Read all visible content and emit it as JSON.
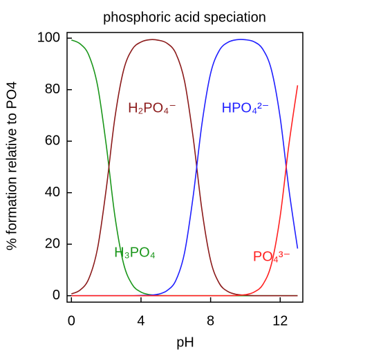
{
  "chart_data": {
    "type": "line",
    "title": "phosphoric acid speciation",
    "xlabel": "pH",
    "ylabel": "% formation relative to PO4",
    "x": [
      0,
      0.5,
      1,
      1.5,
      2,
      2.5,
      3,
      3.5,
      4,
      4.5,
      5,
      5.5,
      6,
      6.5,
      7,
      7.5,
      8,
      8.5,
      9,
      9.5,
      10,
      10.5,
      11,
      11.5,
      12,
      12.5,
      13
    ],
    "series": [
      {
        "name": "H₃PO₄",
        "color": "#1a961a",
        "values": [
          99.3,
          97.8,
          93.4,
          81.7,
          58.6,
          30.9,
          12.4,
          4.3,
          1.4,
          0.4,
          0.1,
          0,
          0,
          0,
          0,
          0,
          0,
          0,
          0,
          0,
          0,
          0,
          0,
          0,
          0,
          0,
          0
        ]
      },
      {
        "name": "H₂PO₄⁻",
        "color": "#8b1a1a",
        "values": [
          0.7,
          2.2,
          6.6,
          18.3,
          41.4,
          69.1,
          87.6,
          95.7,
          98.5,
          99.4,
          99.2,
          98.0,
          94.1,
          83.4,
          61.3,
          33.4,
          13.7,
          4.8,
          1.6,
          0.5,
          0.2,
          0,
          0,
          0,
          0,
          0,
          0
        ]
      },
      {
        "name": "HPO₄²⁻",
        "color": "#1f1fff",
        "values": [
          0,
          0,
          0,
          0,
          0,
          0,
          0,
          0,
          0.1,
          0.2,
          0.6,
          2.0,
          5.9,
          16.6,
          38.7,
          66.6,
          86.3,
          95.2,
          98.4,
          99.4,
          99.4,
          98.6,
          95.7,
          87.6,
          69.1,
          41.4,
          18.3
        ]
      },
      {
        "name": "PO₄³⁻",
        "color": "#ff2020",
        "values": [
          0,
          0,
          0,
          0,
          0,
          0,
          0,
          0,
          0,
          0,
          0,
          0,
          0,
          0,
          0,
          0,
          0,
          0,
          0,
          0.1,
          0.4,
          1.4,
          4.3,
          12.4,
          30.9,
          58.6,
          81.7
        ]
      }
    ],
    "xlim": [
      -0.25,
      13.3
    ],
    "ylim": [
      -2.5,
      102.2
    ],
    "xticks": [
      0,
      4,
      8,
      12
    ],
    "yticks": [
      0,
      20,
      40,
      60,
      80,
      100
    ]
  }
}
